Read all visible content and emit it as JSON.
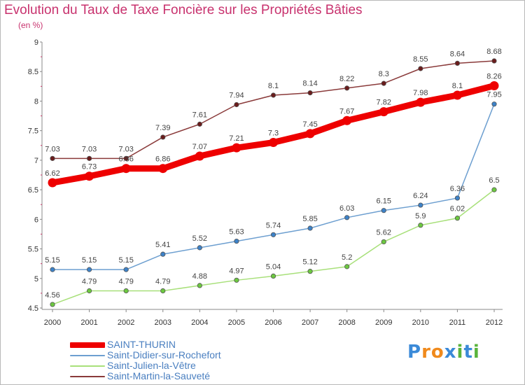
{
  "title": "Evolution du Taux de Taxe Foncière sur les Propriétés Bâties",
  "subtitle": "(en %)",
  "logo": {
    "text": "Proxiti",
    "letters": [
      "P",
      "r",
      "o",
      "x",
      "i",
      "t",
      "i"
    ],
    "colors": [
      "#3b8ad8",
      "#f08a1c",
      "#f08a1c",
      "#3b8ad8",
      "#5ab43c",
      "#3b8ad8",
      "#5ab43c"
    ]
  },
  "chart_data": {
    "type": "line",
    "title": "Evolution du Taux de Taxe Foncière sur les Propriétés Bâties",
    "ylabel": "(en %)",
    "xlabel": "",
    "x": [
      "2000",
      "2001",
      "2002",
      "2003",
      "2004",
      "2005",
      "2006",
      "2007",
      "2008",
      "2009",
      "2010",
      "2011",
      "2012"
    ],
    "ylim": [
      4.5,
      9
    ],
    "yticks": [
      "4.5",
      "5",
      "5.5",
      "6",
      "6.5",
      "7",
      "7.5",
      "8",
      "8.5",
      "9"
    ],
    "grid": false,
    "legend_position": "bottom-left",
    "series": [
      {
        "name": "SAINT-THURIN",
        "color": "#ee0000",
        "marker": "#ee0000",
        "emphasis": true,
        "values": [
          6.62,
          6.73,
          6.86,
          6.86,
          7.07,
          7.21,
          7.3,
          7.45,
          7.67,
          7.82,
          7.98,
          8.1,
          8.26
        ],
        "labels": [
          "6.62",
          "6.73",
          "6.86",
          "6.86",
          "7.07",
          "7.21",
          "7.3",
          "7.45",
          "7.67",
          "7.82",
          "7.98",
          "8.1",
          "8.26"
        ]
      },
      {
        "name": "Saint-Didier-sur-Rochefort",
        "color": "#6d9fd0",
        "marker": "#3d82c8",
        "emphasis": false,
        "values": [
          5.15,
          5.15,
          5.15,
          5.41,
          5.52,
          5.63,
          5.74,
          5.85,
          6.03,
          6.15,
          6.24,
          6.36,
          7.95
        ],
        "labels": [
          "5.15",
          "5.15",
          "5.15",
          "5.41",
          "5.52",
          "5.63",
          "5.74",
          "5.85",
          "6.03",
          "6.15",
          "6.24",
          "6.36",
          "7.95"
        ]
      },
      {
        "name": "Saint-Julien-la-Vêtre",
        "color": "#a8e07a",
        "marker": "#6cc840",
        "emphasis": false,
        "values": [
          4.56,
          4.79,
          4.79,
          4.79,
          4.88,
          4.97,
          5.04,
          5.12,
          5.2,
          5.62,
          5.9,
          6.02,
          6.5
        ],
        "labels": [
          "4.56",
          "4.79",
          "4.79",
          "4.79",
          "4.88",
          "4.97",
          "5.04",
          "5.12",
          "5.2",
          "5.62",
          "5.9",
          "6.02",
          "6.5"
        ]
      },
      {
        "name": "Saint-Martin-la-Sauveté",
        "color": "#8a3a3a",
        "marker": "#6a1c1c",
        "emphasis": false,
        "values": [
          7.03,
          7.03,
          7.03,
          7.39,
          7.61,
          7.94,
          8.1,
          8.14,
          8.22,
          8.3,
          8.55,
          8.64,
          8.68
        ],
        "labels": [
          "7.03",
          "7.03",
          "7.03",
          "7.39",
          "7.61",
          "7.94",
          "8.1",
          "8.14",
          "8.22",
          "8.3",
          "8.55",
          "8.64",
          "8.68"
        ]
      }
    ]
  }
}
